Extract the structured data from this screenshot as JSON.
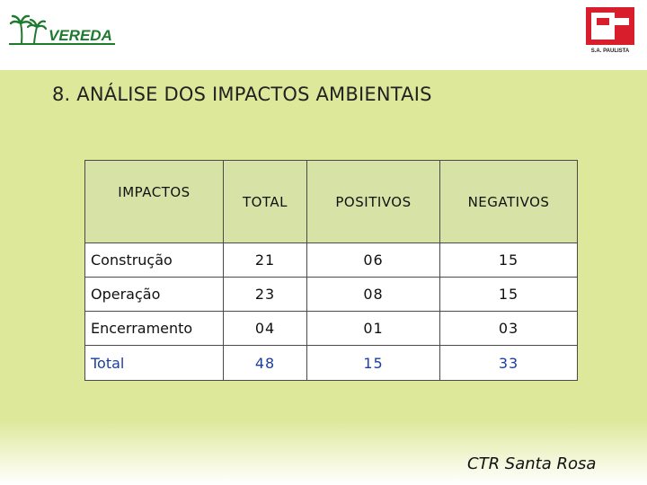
{
  "header": {
    "left_logo": {
      "text": "VEREDA",
      "icon": "palm-tree-icon"
    },
    "right_logo": {
      "caption": "S.A. PAULISTA",
      "icon": "paulista-p-icon"
    }
  },
  "slide": {
    "title": "8. ANÁLISE DOS IMPACTOS AMBIENTAIS",
    "footer": "CTR Santa Rosa"
  },
  "table": {
    "headers": [
      "IMPACTOS",
      "TOTAL",
      "POSITIVOS",
      "NEGATIVOS"
    ],
    "rows": [
      {
        "label": "Construção",
        "total": "21",
        "positivos": "06",
        "negativos": "15"
      },
      {
        "label": "Operação",
        "total": "23",
        "positivos": "08",
        "negativos": "15"
      },
      {
        "label": "Encerramento",
        "total": "04",
        "positivos": "01",
        "negativos": "03"
      },
      {
        "label": "Total",
        "total": "48",
        "positivos": "15",
        "negativos": "33"
      }
    ]
  },
  "colors": {
    "band": "#dde89a",
    "header_cell": "#d7e3a6",
    "total_text": "#1a3fa0",
    "vereda_green": "#1e7a2e",
    "paulista_red": "#d81e2c"
  }
}
